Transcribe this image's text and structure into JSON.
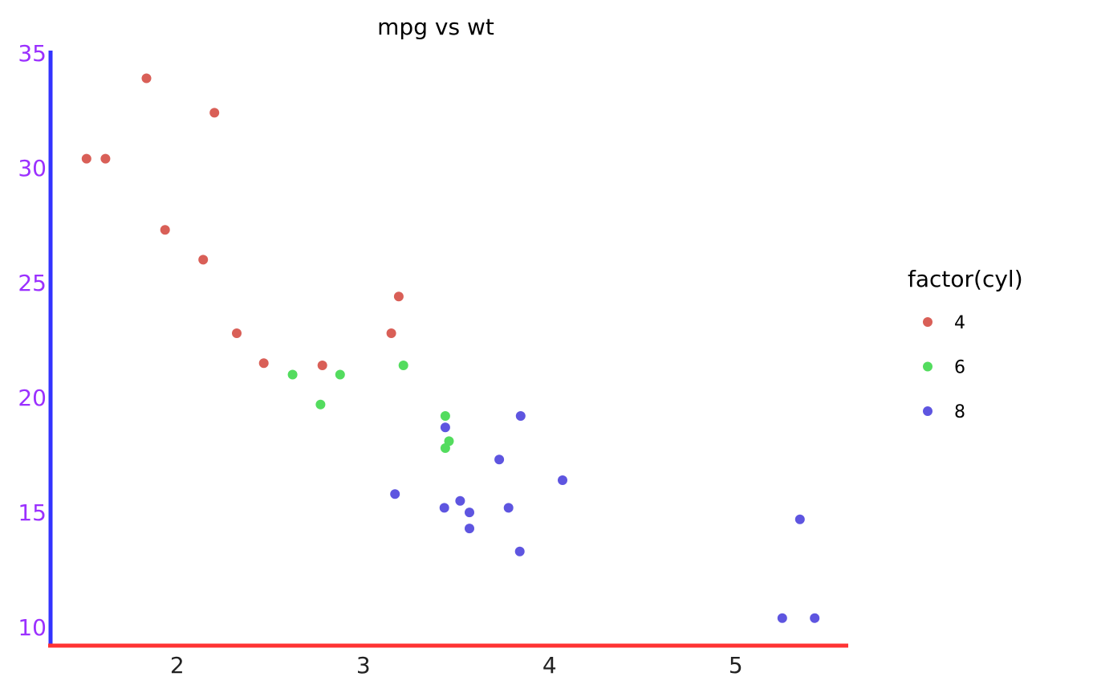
{
  "chart_data": {
    "type": "scatter",
    "title": "mpg vs wt",
    "xlabel": "",
    "ylabel": "",
    "xlim": [
      1.32,
      5.6
    ],
    "ylim": [
      9.2,
      35.0
    ],
    "x_ticks": [
      2,
      3,
      4,
      5
    ],
    "y_ticks": [
      10,
      15,
      20,
      25,
      30,
      35
    ],
    "grid": false,
    "legend": {
      "title": "factor(cyl)",
      "position": "right"
    },
    "colors": {
      "x_axis": "#ff3333",
      "y_axis": "#3333ff",
      "y_tick_labels": "#9b30ff"
    },
    "series": [
      {
        "name": "4",
        "color": "#d95f57",
        "points": [
          {
            "x": 1.513,
            "y": 30.4
          },
          {
            "x": 1.615,
            "y": 30.4
          },
          {
            "x": 1.835,
            "y": 33.9
          },
          {
            "x": 1.935,
            "y": 27.3
          },
          {
            "x": 2.14,
            "y": 26.0
          },
          {
            "x": 2.2,
            "y": 32.4
          },
          {
            "x": 2.32,
            "y": 22.8
          },
          {
            "x": 2.465,
            "y": 21.5
          },
          {
            "x": 2.78,
            "y": 21.4
          },
          {
            "x": 3.15,
            "y": 22.8
          },
          {
            "x": 3.19,
            "y": 24.4
          }
        ]
      },
      {
        "name": "6",
        "color": "#53dc5e",
        "points": [
          {
            "x": 2.62,
            "y": 21.0
          },
          {
            "x": 2.77,
            "y": 19.7
          },
          {
            "x": 2.875,
            "y": 21.0
          },
          {
            "x": 3.215,
            "y": 21.4
          },
          {
            "x": 3.44,
            "y": 19.2
          },
          {
            "x": 3.44,
            "y": 17.8
          },
          {
            "x": 3.46,
            "y": 18.1
          }
        ]
      },
      {
        "name": "8",
        "color": "#5e55e0",
        "points": [
          {
            "x": 3.17,
            "y": 15.8
          },
          {
            "x": 3.435,
            "y": 15.2
          },
          {
            "x": 3.44,
            "y": 18.7
          },
          {
            "x": 3.52,
            "y": 15.5
          },
          {
            "x": 3.57,
            "y": 14.3
          },
          {
            "x": 3.57,
            "y": 15.0
          },
          {
            "x": 3.73,
            "y": 17.3
          },
          {
            "x": 3.78,
            "y": 15.2
          },
          {
            "x": 3.84,
            "y": 13.3
          },
          {
            "x": 3.845,
            "y": 19.2
          },
          {
            "x": 4.07,
            "y": 16.4
          },
          {
            "x": 5.25,
            "y": 10.4
          },
          {
            "x": 5.345,
            "y": 14.7
          },
          {
            "x": 5.424,
            "y": 10.4
          }
        ]
      }
    ]
  }
}
